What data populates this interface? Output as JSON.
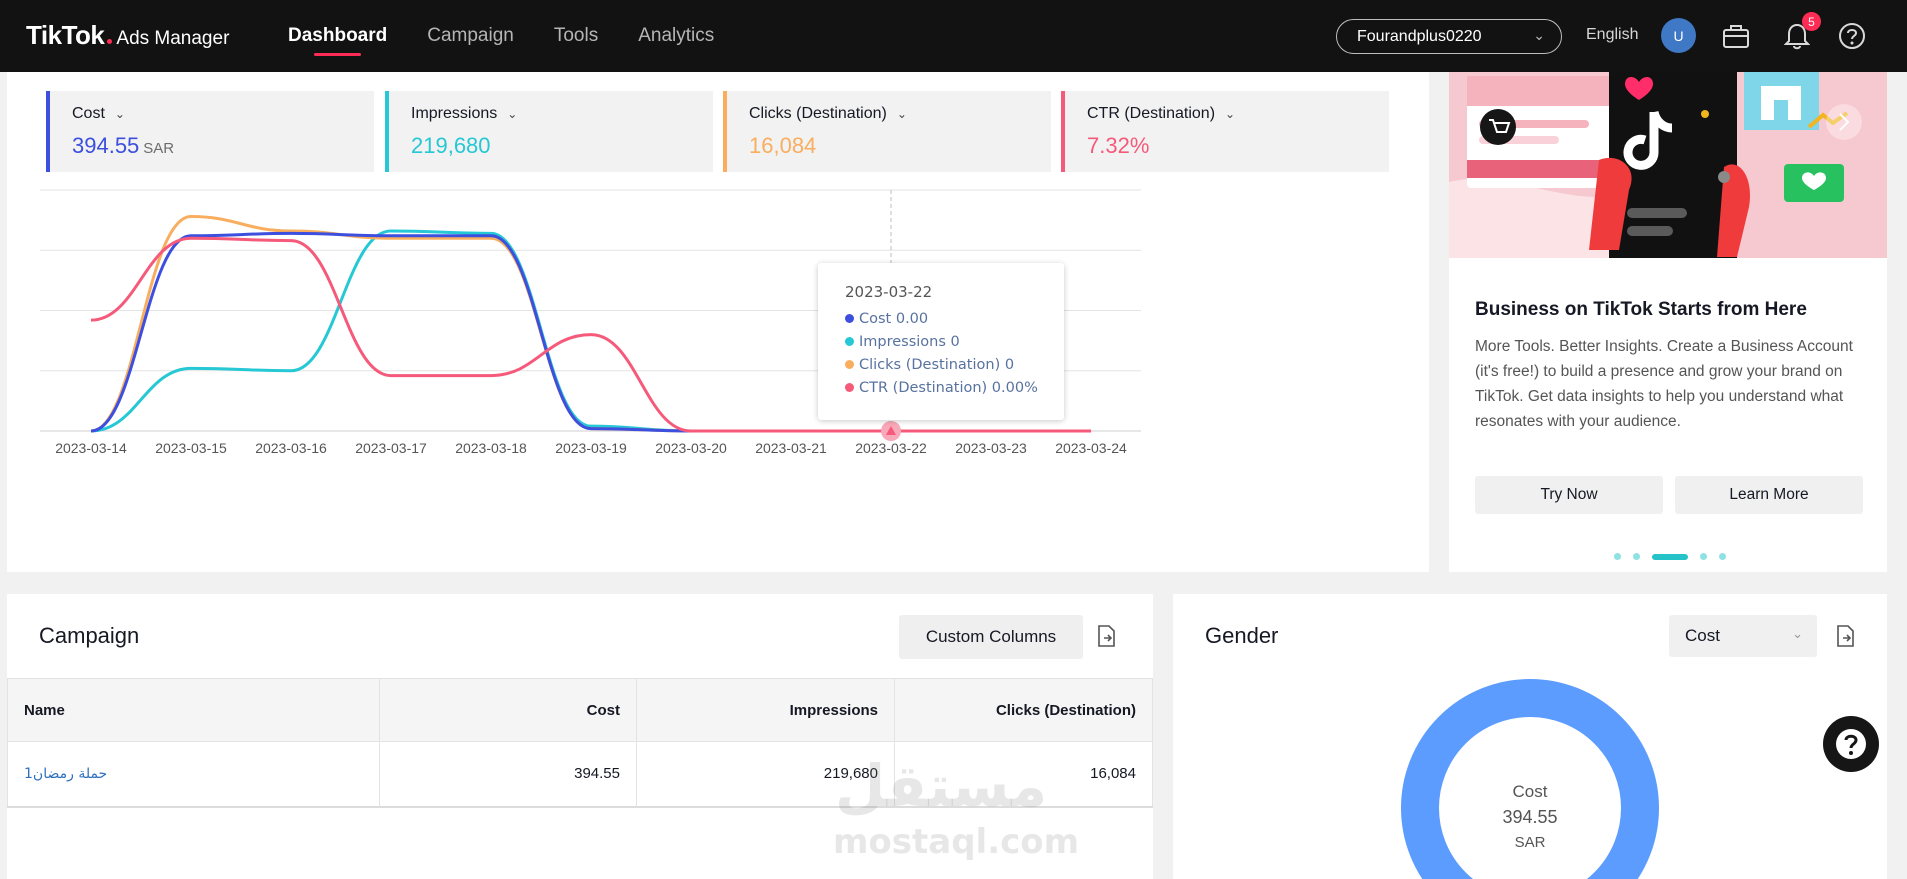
{
  "app": {
    "logo_brand": "TikTok",
    "logo_product": "Ads Manager"
  },
  "nav": [
    {
      "label": "Dashboard",
      "active": true
    },
    {
      "label": "Campaign",
      "active": false
    },
    {
      "label": "Tools",
      "active": false
    },
    {
      "label": "Analytics",
      "active": false
    }
  ],
  "topbar": {
    "account": "Fourandplus0220",
    "language": "English",
    "avatar_initial": "U",
    "notification_count": "5"
  },
  "kpis": [
    {
      "title": "Cost",
      "value": "394.55",
      "unit": "SAR",
      "color": "#3d4fde"
    },
    {
      "title": "Impressions",
      "value": "219,680",
      "unit": "",
      "color": "#25c8d4"
    },
    {
      "title": "Clicks (Destination)",
      "value": "16,084",
      "unit": "",
      "color": "#f8ae5e"
    },
    {
      "title": "CTR (Destination)",
      "value": "7.32%",
      "unit": "",
      "color": "#f55a7a"
    }
  ],
  "tooltip": {
    "date": "2023-03-22",
    "rows": [
      {
        "label": "Cost 0.00",
        "color": "#3d4fde"
      },
      {
        "label": "Impressions 0",
        "color": "#25c8d4"
      },
      {
        "label": "Clicks (Destination) 0",
        "color": "#f8ae5e"
      },
      {
        "label": "CTR (Destination) 0.00%",
        "color": "#f55a7a"
      }
    ]
  },
  "chart_data": {
    "type": "line",
    "categories": [
      "2023-03-14",
      "2023-03-15",
      "2023-03-16",
      "2023-03-17",
      "2023-03-18",
      "2023-03-19",
      "2023-03-20",
      "2023-03-21",
      "2023-03-22",
      "2023-03-23",
      "2023-03-24"
    ],
    "series": [
      {
        "name": "Cost",
        "color": "#3d4fde",
        "values": [
          0,
          0.81,
          0.82,
          0.81,
          0.81,
          0.01,
          0,
          0,
          0,
          0,
          0
        ]
      },
      {
        "name": "Impressions",
        "color": "#25c8d4",
        "values": [
          0,
          0.26,
          0.25,
          0.83,
          0.82,
          0.02,
          0,
          0,
          0,
          0,
          0
        ]
      },
      {
        "name": "Clicks (Destination)",
        "color": "#f8ae5e",
        "values": [
          0,
          0.89,
          0.83,
          0.8,
          0.8,
          0.01,
          0,
          0,
          0,
          0,
          0
        ]
      },
      {
        "name": "CTR (Destination)",
        "color": "#f55a7a",
        "values": [
          0.46,
          0.8,
          0.79,
          0.23,
          0.23,
          0.4,
          0,
          0,
          0,
          0,
          0
        ]
      }
    ],
    "ylim": [
      0,
      1
    ],
    "grid": true,
    "hover_index": 8
  },
  "promo": {
    "title": "Business on TikTok Starts from Here",
    "text": "More Tools. Better Insights. Create a Business Account (it's free!) to build a presence and grow your brand on TikTok. Get data insights to help you understand what resonates with your audience.",
    "try_label": "Try Now",
    "learn_label": "Learn More"
  },
  "campaign": {
    "title": "Campaign",
    "custom_columns_label": "Custom Columns",
    "columns": [
      "Name",
      "Cost",
      "Impressions",
      "Clicks (Destination)"
    ],
    "rows": [
      {
        "name": "حملة رمضان1",
        "cost": "394.55",
        "impressions": "219,680",
        "clicks": "16,084"
      }
    ]
  },
  "gender": {
    "title": "Gender",
    "metric": "Cost",
    "center_label": "Cost",
    "center_value": "394.55",
    "center_unit": "SAR",
    "donut_color": "#5c9cff"
  },
  "watermark": {
    "arabic": "مستقل",
    "latin": "mostaql.com"
  }
}
